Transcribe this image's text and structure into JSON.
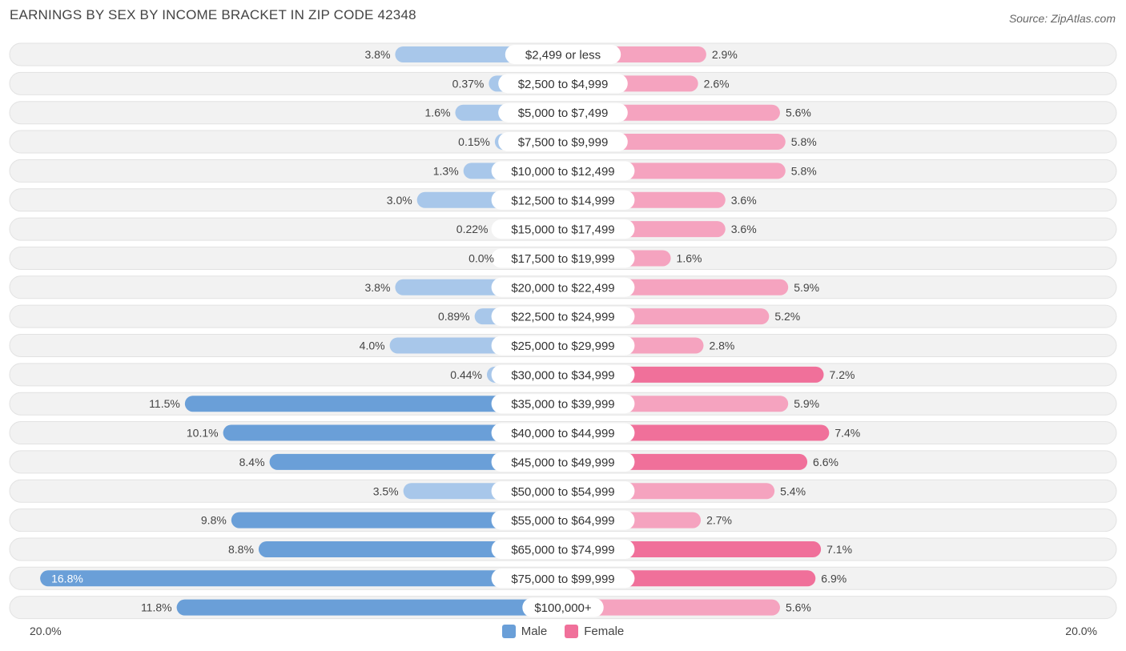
{
  "header": {
    "title": "EARNINGS BY SEX BY INCOME BRACKET IN ZIP CODE 42348",
    "source": "Source: ZipAtlas.com"
  },
  "colors": {
    "male": "#6a9fd8",
    "male_light": "#a8c7ea",
    "female": "#f0709a",
    "female_light": "#f5a3bf",
    "row_bg": "#f0f0f0"
  },
  "legend": {
    "male_label": "Male",
    "female_label": "Female"
  },
  "axis": {
    "left_label": "20.0%",
    "right_label": "20.0%"
  },
  "chart_data": {
    "type": "bar",
    "orientation": "horizontal-diverging",
    "title": "EARNINGS BY SEX BY INCOME BRACKET IN ZIP CODE 42348",
    "xlim": [
      -20,
      20
    ],
    "categories": [
      "$2,499 or less",
      "$2,500 to $4,999",
      "$5,000 to $7,499",
      "$7,500 to $9,999",
      "$10,000 to $12,499",
      "$12,500 to $14,999",
      "$15,000 to $17,499",
      "$17,500 to $19,999",
      "$20,000 to $22,499",
      "$22,500 to $24,999",
      "$25,000 to $29,999",
      "$30,000 to $34,999",
      "$35,000 to $39,999",
      "$40,000 to $44,999",
      "$45,000 to $49,999",
      "$50,000 to $54,999",
      "$55,000 to $64,999",
      "$65,000 to $74,999",
      "$75,000 to $99,999",
      "$100,000+"
    ],
    "series": [
      {
        "name": "Male",
        "values": [
          3.8,
          0.37,
          1.6,
          0.15,
          1.3,
          3.0,
          0.22,
          0.0,
          3.8,
          0.89,
          4.0,
          0.44,
          11.5,
          10.1,
          8.4,
          3.5,
          9.8,
          8.8,
          16.8,
          11.8
        ],
        "labels": [
          "3.8%",
          "0.37%",
          "1.6%",
          "0.15%",
          "1.3%",
          "3.0%",
          "0.22%",
          "0.0%",
          "3.8%",
          "0.89%",
          "4.0%",
          "0.44%",
          "11.5%",
          "10.1%",
          "8.4%",
          "3.5%",
          "9.8%",
          "8.8%",
          "16.8%",
          "11.8%"
        ]
      },
      {
        "name": "Female",
        "values": [
          2.9,
          2.6,
          5.6,
          5.8,
          5.8,
          3.6,
          3.6,
          1.6,
          5.9,
          5.2,
          2.8,
          7.2,
          5.9,
          7.4,
          6.6,
          5.4,
          2.7,
          7.1,
          6.9,
          5.6
        ],
        "labels": [
          "2.9%",
          "2.6%",
          "5.6%",
          "5.8%",
          "5.8%",
          "3.6%",
          "3.6%",
          "1.6%",
          "5.9%",
          "5.2%",
          "2.8%",
          "7.2%",
          "5.9%",
          "7.4%",
          "6.6%",
          "5.4%",
          "2.7%",
          "7.1%",
          "6.9%",
          "5.6%"
        ]
      }
    ]
  }
}
